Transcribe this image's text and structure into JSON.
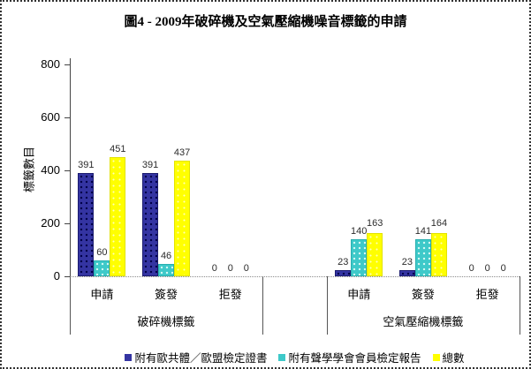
{
  "figure": {
    "title": "圖4 - 2009年破碎機及空氣壓縮機噪音標籤的申請"
  },
  "chart_data": {
    "type": "bar",
    "title": "圖4 - 2009年破碎機及空氣壓縮機噪音標籤的申請",
    "xlabel": "",
    "ylabel": "標籤數目",
    "ylim": [
      0,
      800
    ],
    "yticks": [
      0,
      200,
      400,
      600,
      800
    ],
    "grid": false,
    "legend_position": "bottom",
    "series": [
      {
        "name": "附有歐共體／歐盟檢定證書",
        "color": "#3434A2"
      },
      {
        "name": "附有聲學學會會員檢定報告",
        "color": "#3EC9C9"
      },
      {
        "name": "總數",
        "color": "#FFFF00"
      }
    ],
    "groups": [
      {
        "label": "破碎機標籤",
        "categories": [
          "申請",
          "簽發",
          "拒發"
        ],
        "values": [
          [
            391,
            60,
            451
          ],
          [
            391,
            46,
            437
          ],
          [
            0,
            0,
            0
          ]
        ]
      },
      {
        "label": "空氣壓縮機標籤",
        "categories": [
          "申請",
          "簽發",
          "拒發"
        ],
        "values": [
          [
            23,
            140,
            163
          ],
          [
            23,
            141,
            164
          ],
          [
            0,
            0,
            0
          ]
        ]
      }
    ]
  }
}
